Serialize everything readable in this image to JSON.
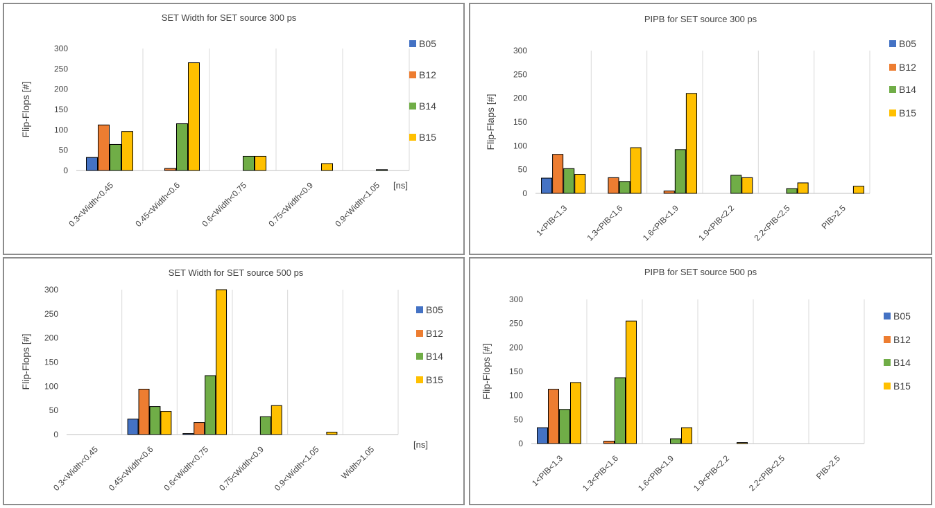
{
  "chart_data": [
    {
      "type": "bar",
      "title": "SET Width  for SET source 300 ps",
      "ylabel": "Flip-Flops [#]",
      "xunit": "[ns]",
      "ylim": [
        0,
        300
      ],
      "yticks": [
        0,
        50,
        100,
        150,
        200,
        250,
        300
      ],
      "categories": [
        "0.3<Width<0.45",
        "0.45<Width<0.6",
        "0.6<Width<0.75",
        "0.75<Width<0.9",
        "0.9<Width<1.05"
      ],
      "series": [
        {
          "name": "B05",
          "color": "#4472c4",
          "values": [
            32,
            0,
            0,
            0,
            0
          ]
        },
        {
          "name": "B12",
          "color": "#ed7d31",
          "values": [
            112,
            5,
            0,
            0,
            0
          ]
        },
        {
          "name": "B14",
          "color": "#70ad47",
          "values": [
            64,
            115,
            35,
            0,
            2
          ]
        },
        {
          "name": "B15",
          "color": "#ffc000",
          "values": [
            96,
            265,
            35,
            17,
            0
          ]
        }
      ],
      "grid": "vertical-category-separators",
      "legend": "right"
    },
    {
      "type": "bar",
      "title": "PIPB  for SET source 300 ps",
      "ylabel": "Flip-Flaps [#]",
      "ylim": [
        0,
        300
      ],
      "yticks": [
        0,
        50,
        100,
        150,
        200,
        250,
        300
      ],
      "categories": [
        "1<PIB<1.3",
        "1.3<PIB<1.6",
        "1.6<PIB<1.9",
        "1.9<PIB<2.2",
        "2.2<PIB<2.5",
        "PIB>2.5"
      ],
      "series": [
        {
          "name": "B05",
          "color": "#4472c4",
          "values": [
            32,
            0,
            0,
            0,
            0,
            0
          ]
        },
        {
          "name": "B12",
          "color": "#ed7d31",
          "values": [
            82,
            33,
            5,
            0,
            0,
            0
          ]
        },
        {
          "name": "B14",
          "color": "#70ad47",
          "values": [
            52,
            25,
            92,
            38,
            10,
            0
          ]
        },
        {
          "name": "B15",
          "color": "#ffc000",
          "values": [
            40,
            96,
            210,
            33,
            22,
            15
          ]
        }
      ],
      "grid": "vertical-category-separators",
      "legend": "right"
    },
    {
      "type": "bar",
      "title": "SET Width  for SET source 500 ps",
      "ylabel": "Flip-Flops [#]",
      "xunit": "[ns]",
      "ylim": [
        0,
        300
      ],
      "yticks": [
        0,
        50,
        100,
        150,
        200,
        250,
        300
      ],
      "categories": [
        "0.3<Width<0.45",
        "0.45<Width<0.6",
        "0.6<Width<0.75",
        "0.75<Width<0.9",
        "0.9<Width<1.05",
        "Width>1.05"
      ],
      "series": [
        {
          "name": "B05",
          "color": "#4472c4",
          "values": [
            0,
            32,
            2,
            0,
            0,
            0
          ]
        },
        {
          "name": "B12",
          "color": "#ed7d31",
          "values": [
            0,
            94,
            25,
            0,
            0,
            0
          ]
        },
        {
          "name": "B14",
          "color": "#70ad47",
          "values": [
            0,
            58,
            122,
            37,
            0,
            0
          ]
        },
        {
          "name": "B15",
          "color": "#ffc000",
          "values": [
            0,
            48,
            300,
            60,
            5,
            0
          ]
        }
      ],
      "grid": "vertical-category-separators",
      "legend": "right"
    },
    {
      "type": "bar",
      "title": "PIPB  for SET source 500 ps",
      "ylabel": "Flip-Flops [#]",
      "ylim": [
        0,
        300
      ],
      "yticks": [
        0,
        50,
        100,
        150,
        200,
        250,
        300
      ],
      "categories": [
        "1<PIB<1.3",
        "1.3<PIB<1.6",
        "1.6<PIB<1.9",
        "1.9<PIB<2.2",
        "2.2<PIB<2.5",
        "PIB>2.5"
      ],
      "series": [
        {
          "name": "B05",
          "color": "#4472c4",
          "values": [
            33,
            0,
            0,
            0,
            0,
            0
          ]
        },
        {
          "name": "B12",
          "color": "#ed7d31",
          "values": [
            113,
            5,
            0,
            0,
            0,
            0
          ]
        },
        {
          "name": "B14",
          "color": "#70ad47",
          "values": [
            71,
            137,
            10,
            0,
            0,
            0
          ]
        },
        {
          "name": "B15",
          "color": "#ffc000",
          "values": [
            127,
            255,
            33,
            2,
            0,
            0
          ]
        }
      ],
      "grid": "vertical-category-separators",
      "legend": "right"
    }
  ]
}
